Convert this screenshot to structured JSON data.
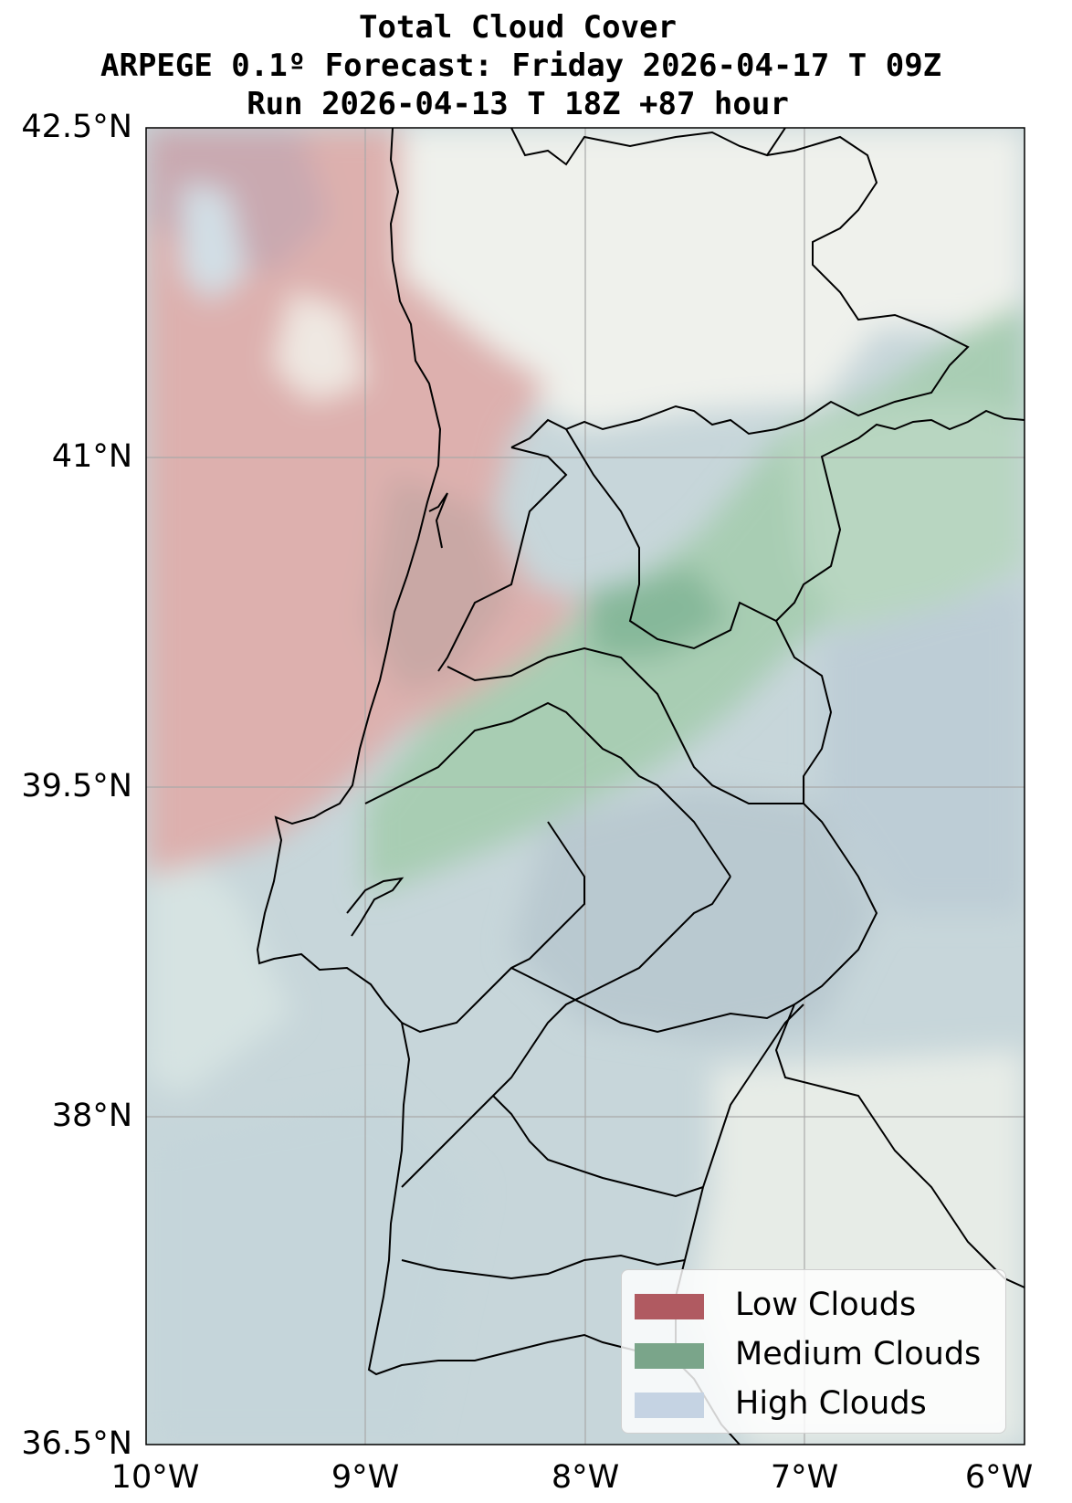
{
  "title": {
    "line1": "Total Cloud Cover",
    "line2": "ARPEGE 0.1º Forecast: Friday 2026-04-17 T 09Z",
    "line3": "Run 2026-04-13 T 18Z +87 hour"
  },
  "axes": {
    "y_ticks": [
      "42.5°N",
      "41°N",
      "39.5°N",
      "38°N",
      "36.5°N"
    ],
    "x_ticks": [
      "10°W",
      "9°W",
      "8°W",
      "7°W",
      "6°W"
    ],
    "lat_range": [
      36.5,
      42.5
    ],
    "lon_range": [
      -10,
      -6
    ],
    "grid": true
  },
  "legend": {
    "placement": "bottom-right",
    "items": [
      {
        "label": "Low Clouds",
        "color": "#b05a61"
      },
      {
        "label": "Medium Clouds",
        "color": "#7aa58a"
      },
      {
        "label": "High Clouds",
        "color": "#c5d3e3"
      }
    ]
  },
  "colors": {
    "low": "#d9a8a6",
    "medium": "#a9cdb4",
    "high": "#c3d3d8",
    "clear": "#eef0ea"
  }
}
